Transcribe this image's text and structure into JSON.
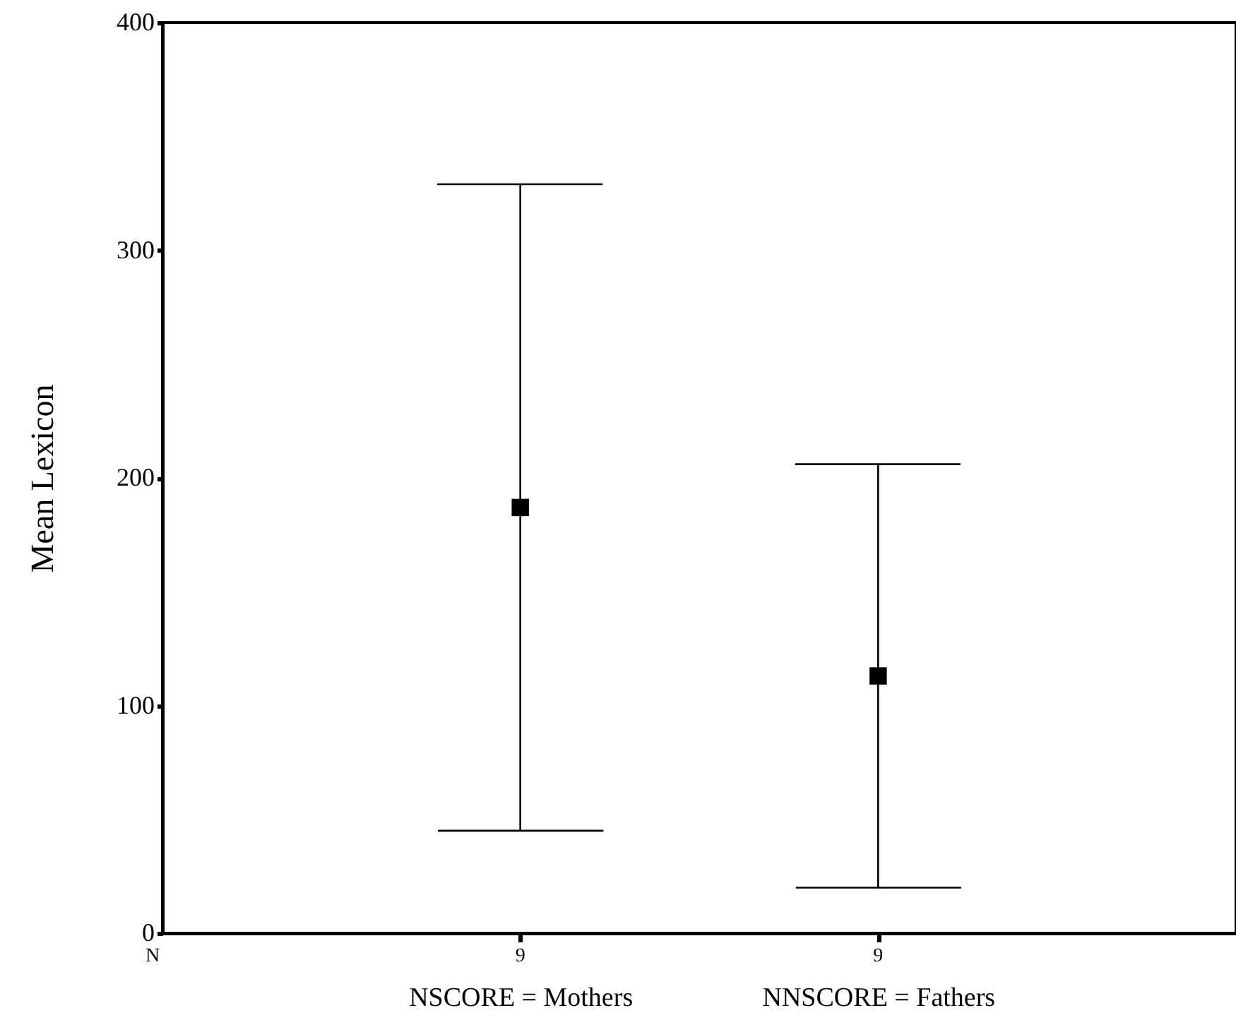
{
  "chart_data": {
    "type": "scatter",
    "ylabel": "Mean Lexicon",
    "categories": [
      "NSCORE = Mothers",
      "NNSCORE = Fathers"
    ],
    "values": [
      187,
      113
    ],
    "color": "#000000",
    "marker": "square",
    "errors": [
      142,
      93
    ],
    "ylim": [
      0,
      400
    ],
    "yticks": [
      0,
      100,
      200,
      300,
      400
    ],
    "grid": false,
    "annotations": [
      "N",
      "9",
      "9"
    ]
  }
}
